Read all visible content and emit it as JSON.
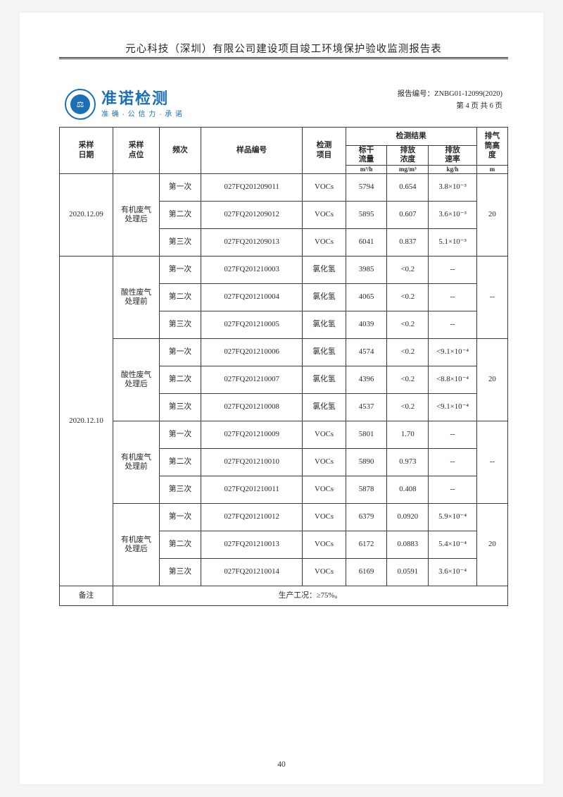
{
  "page_title": "元心科技（深圳）有限公司建设项目竣工环境保护验收监测报告表",
  "brand": {
    "name_cn": "准诺检测",
    "tagline": "准 确 · 公 信 力 · 承 诺"
  },
  "report_meta": {
    "label": "报告编号：",
    "number": "ZNBG01-12099(2020)",
    "page_info": "第 4 页 共 6 页"
  },
  "colors": {
    "brand_blue": "#1a6fb5",
    "text": "#272926",
    "page_bg": "#ffffff",
    "outer_bg": "#f4f5f3",
    "border": "#3a3a3a"
  },
  "header": {
    "date": "采样\n日期",
    "point": "采样\n点位",
    "freq": "频次",
    "sample": "样品编号",
    "item": "检测\n项目",
    "results_group": "检测结果",
    "flow": "标干\n流量",
    "flow_unit": "m³/h",
    "conc": "排放\n浓度",
    "conc_unit": "mg/m³",
    "rate": "排放\n速率",
    "rate_unit": "kg/h",
    "height": "排气\n筒高\n度",
    "height_unit": "m"
  },
  "rows": [
    {
      "date": "2020.12.09",
      "point": "有机废气\n处理后",
      "freq": "第一次",
      "sample": "027FQ201209011",
      "item": "VOCs",
      "flow": "5794",
      "conc": "0.654",
      "rate": "3.8×10⁻³",
      "height": "20"
    },
    {
      "date": "",
      "point": "",
      "freq": "第二次",
      "sample": "027FQ201209012",
      "item": "VOCs",
      "flow": "5895",
      "conc": "0.607",
      "rate": "3.6×10⁻³",
      "height": ""
    },
    {
      "date": "",
      "point": "",
      "freq": "第三次",
      "sample": "027FQ201209013",
      "item": "VOCs",
      "flow": "6041",
      "conc": "0.837",
      "rate": "5.1×10⁻³",
      "height": ""
    },
    {
      "date": "2020.12.10",
      "point": "酸性废气\n处理前",
      "freq": "第一次",
      "sample": "027FQ201210003",
      "item": "氯化氢",
      "flow": "3985",
      "conc": "<0.2",
      "rate": "--",
      "height": "--"
    },
    {
      "date": "",
      "point": "",
      "freq": "第二次",
      "sample": "027FQ201210004",
      "item": "氯化氢",
      "flow": "4065",
      "conc": "<0.2",
      "rate": "--",
      "height": ""
    },
    {
      "date": "",
      "point": "",
      "freq": "第三次",
      "sample": "027FQ201210005",
      "item": "氯化氢",
      "flow": "4039",
      "conc": "<0.2",
      "rate": "--",
      "height": ""
    },
    {
      "date": "",
      "point": "酸性废气\n处理后",
      "freq": "第一次",
      "sample": "027FQ201210006",
      "item": "氯化氢",
      "flow": "4574",
      "conc": "<0.2",
      "rate": "<9.1×10⁻⁴",
      "height": "20"
    },
    {
      "date": "",
      "point": "",
      "freq": "第二次",
      "sample": "027FQ201210007",
      "item": "氯化氢",
      "flow": "4396",
      "conc": "<0.2",
      "rate": "<8.8×10⁻⁴",
      "height": ""
    },
    {
      "date": "",
      "point": "",
      "freq": "第三次",
      "sample": "027FQ201210008",
      "item": "氯化氢",
      "flow": "4537",
      "conc": "<0.2",
      "rate": "<9.1×10⁻⁴",
      "height": ""
    },
    {
      "date": "",
      "point": "有机废气\n处理前",
      "freq": "第一次",
      "sample": "027FQ201210009",
      "item": "VOCs",
      "flow": "5801",
      "conc": "1.70",
      "rate": "--",
      "height": "--"
    },
    {
      "date": "",
      "point": "",
      "freq": "第二次",
      "sample": "027FQ201210010",
      "item": "VOCs",
      "flow": "5890",
      "conc": "0.973",
      "rate": "--",
      "height": ""
    },
    {
      "date": "",
      "point": "",
      "freq": "第三次",
      "sample": "027FQ201210011",
      "item": "VOCs",
      "flow": "5878",
      "conc": "0.408",
      "rate": "--",
      "height": ""
    },
    {
      "date": "",
      "point": "有机废气\n处理后",
      "freq": "第一次",
      "sample": "027FQ201210012",
      "item": "VOCs",
      "flow": "6379",
      "conc": "0.0920",
      "rate": "5.9×10⁻⁴",
      "height": "20"
    },
    {
      "date": "",
      "point": "",
      "freq": "第二次",
      "sample": "027FQ201210013",
      "item": "VOCs",
      "flow": "6172",
      "conc": "0.0883",
      "rate": "5.4×10⁻⁴",
      "height": ""
    },
    {
      "date": "",
      "point": "",
      "freq": "第三次",
      "sample": "027FQ201210014",
      "item": "VOCs",
      "flow": "6169",
      "conc": "0.0591",
      "rate": "3.6×10⁻⁴",
      "height": ""
    }
  ],
  "note": {
    "label": "备注",
    "text": "生产工况：≥75%。"
  },
  "page_number": "40"
}
